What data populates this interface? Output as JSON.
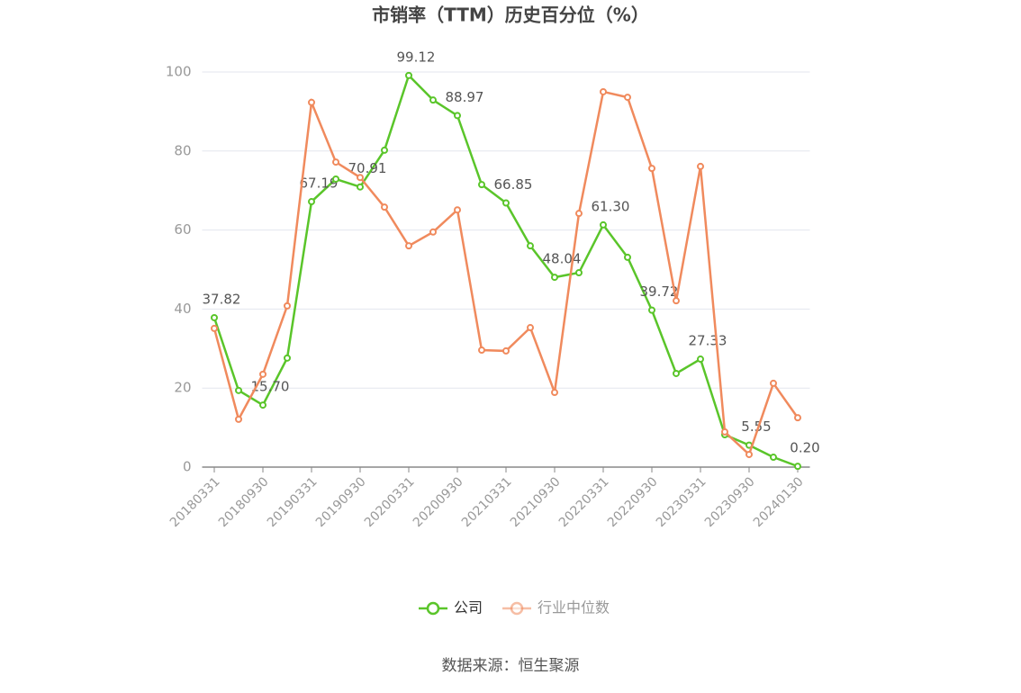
{
  "chart_data": {
    "type": "line",
    "title": "市销率（TTM）历史百分位（%）",
    "categories": [
      "20180331",
      null,
      "20180930",
      null,
      "20190331",
      null,
      "20190930",
      null,
      "20200331",
      null,
      "20200930",
      null,
      "20210331",
      null,
      "20210930",
      null,
      "20220331",
      null,
      "20220930",
      null,
      "20230331",
      null,
      "20230930",
      null,
      "20240130"
    ],
    "series": [
      {
        "name": "公司",
        "color": "#5ac52a",
        "values": [
          37.82,
          19.4,
          15.7,
          27.6,
          67.19,
          72.9,
          70.91,
          80.2,
          99.12,
          92.9,
          88.97,
          71.5,
          66.85,
          56.0,
          48.04,
          49.2,
          61.3,
          53.1,
          39.72,
          23.7,
          27.33,
          8.2,
          5.55,
          2.5,
          0.2
        ],
        "value_labels": [
          "37.82",
          null,
          "15.70",
          null,
          "67.19",
          null,
          "70.91",
          null,
          "99.12",
          null,
          "88.97",
          null,
          "66.85",
          null,
          "48.04",
          null,
          "61.30",
          null,
          "39.72",
          null,
          "27.33",
          null,
          "5.55",
          null,
          "0.20"
        ]
      },
      {
        "name": "行业中位数",
        "color": "#f08a5d",
        "values": [
          35.1,
          12.1,
          23.5,
          40.8,
          92.3,
          77.2,
          73.3,
          65.8,
          56.0,
          59.5,
          65.1,
          29.6,
          29.4,
          35.3,
          18.9,
          64.2,
          95.0,
          93.6,
          75.6,
          42.1,
          76.1,
          8.9,
          3.2,
          21.2,
          12.5
        ]
      }
    ],
    "ylim": [
      0,
      100
    ],
    "yticks": [
      0,
      20,
      40,
      60,
      80,
      100
    ],
    "grid": true,
    "legend": "bottom",
    "source": "数据来源：恒生聚源"
  }
}
